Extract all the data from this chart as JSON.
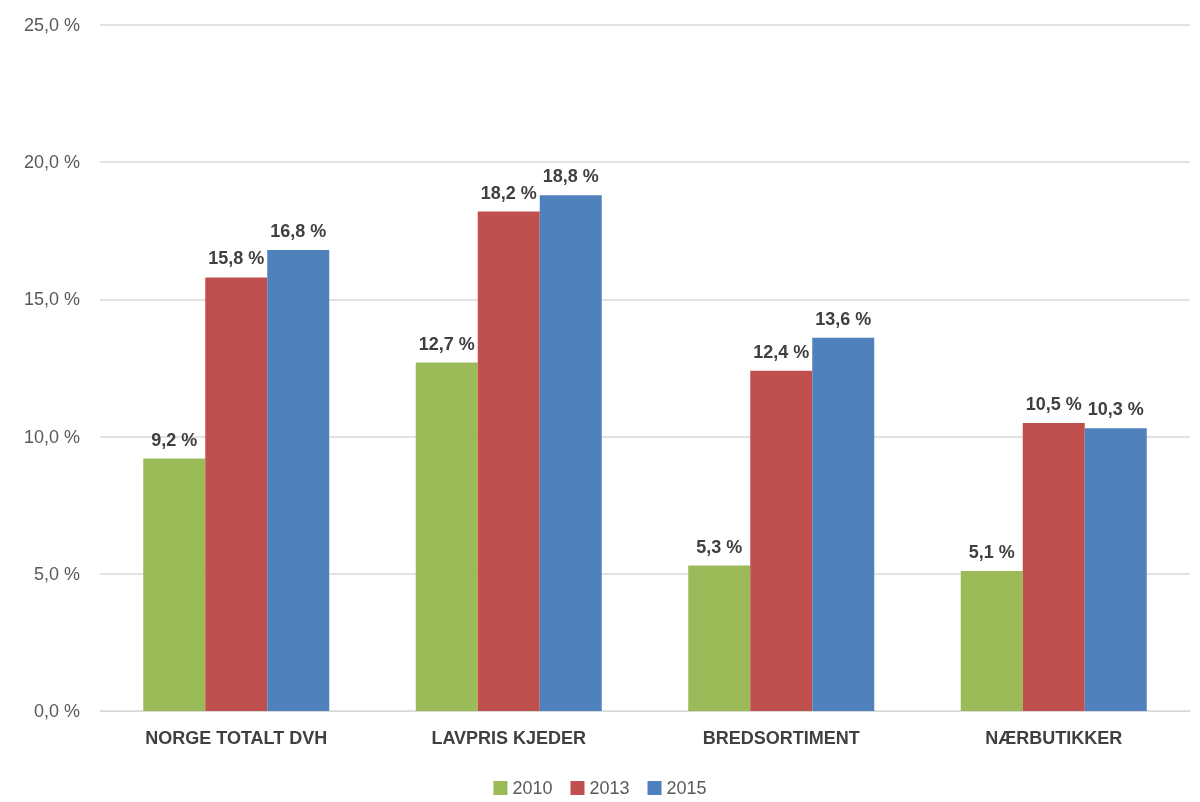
{
  "chart_data": {
    "type": "bar",
    "categories": [
      "NORGE TOTALT DVH",
      "LAVPRIS KJEDER",
      "BREDSORTIMENT",
      "NÆRBUTIKKER"
    ],
    "series": [
      {
        "name": "2010",
        "color": "#9bbb59",
        "values": [
          9.2,
          12.7,
          5.3,
          5.1
        ],
        "value_labels": [
          "9,2 %",
          "12,7 %",
          "5,3 %",
          "5,1 %"
        ]
      },
      {
        "name": "2013",
        "color": "#c0504d",
        "values": [
          15.8,
          18.2,
          12.4,
          10.5
        ],
        "value_labels": [
          "15,8 %",
          "18,2 %",
          "12,4 %",
          "10,5 %"
        ]
      },
      {
        "name": "2015",
        "color": "#4f81bd",
        "values": [
          16.8,
          18.8,
          13.6,
          10.3
        ],
        "value_labels": [
          "16,8 %",
          "18,8 %",
          "13,6 %",
          "10,3 %"
        ]
      }
    ],
    "ylim": [
      0,
      25
    ],
    "yticks": [
      {
        "value": 0,
        "label": "0,0 %"
      },
      {
        "value": 5,
        "label": "5,0 %"
      },
      {
        "value": 10,
        "label": "10,0 %"
      },
      {
        "value": 15,
        "label": "15,0 %"
      },
      {
        "value": 20,
        "label": "20,0 %"
      },
      {
        "value": 25,
        "label": "25,0 %"
      }
    ],
    "grid": "y",
    "legend": "bottom"
  }
}
